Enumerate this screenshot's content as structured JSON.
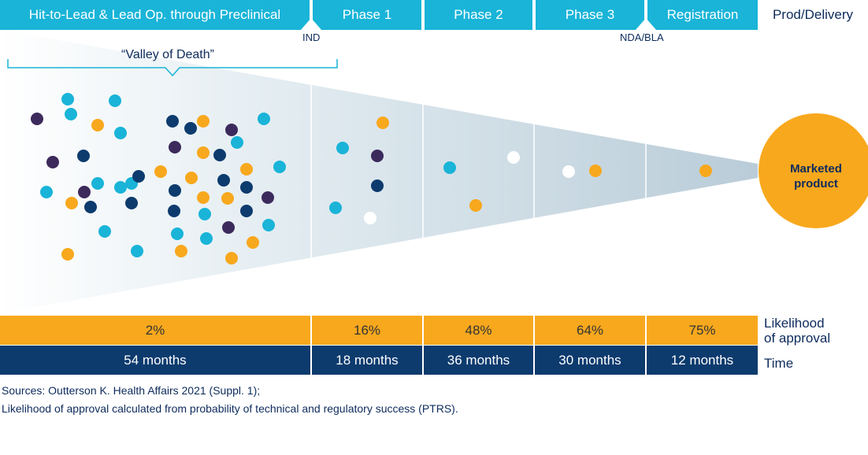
{
  "header": {
    "stages": [
      "Hit-to-Lead & Lead Op. through Preclinical",
      "Phase 1",
      "Phase 2",
      "Phase 3",
      "Registration"
    ],
    "right_label": "Prod/Delivery"
  },
  "milestones": {
    "ind": "IND",
    "nda": "NDA/BLA"
  },
  "valley_label": "“Valley of Death”",
  "marketed": {
    "line1": "Marketed",
    "line2": "product"
  },
  "likelihood": {
    "label_line1": "Likelihood",
    "label_line2": "of approval",
    "values": [
      "2%",
      "16%",
      "48%",
      "64%",
      "75%"
    ]
  },
  "time": {
    "label": "Time",
    "values": [
      "54 months",
      "18 months",
      "36 months",
      "30 months",
      "12 months"
    ]
  },
  "sources": {
    "line1": "Sources: Outterson K. Health Affairs 2021 (Suppl. 1);",
    "line2": "Likelihood of approval calculated from probability of technical and regulatory success (PTRS)."
  },
  "colors": {
    "teal": "#19b4d8",
    "orange": "#f8a81d",
    "navy": "#0d3b6e",
    "purple": "#3d2a5c",
    "white": "#ffffff",
    "dark_text": "#0d2b5c"
  }
}
